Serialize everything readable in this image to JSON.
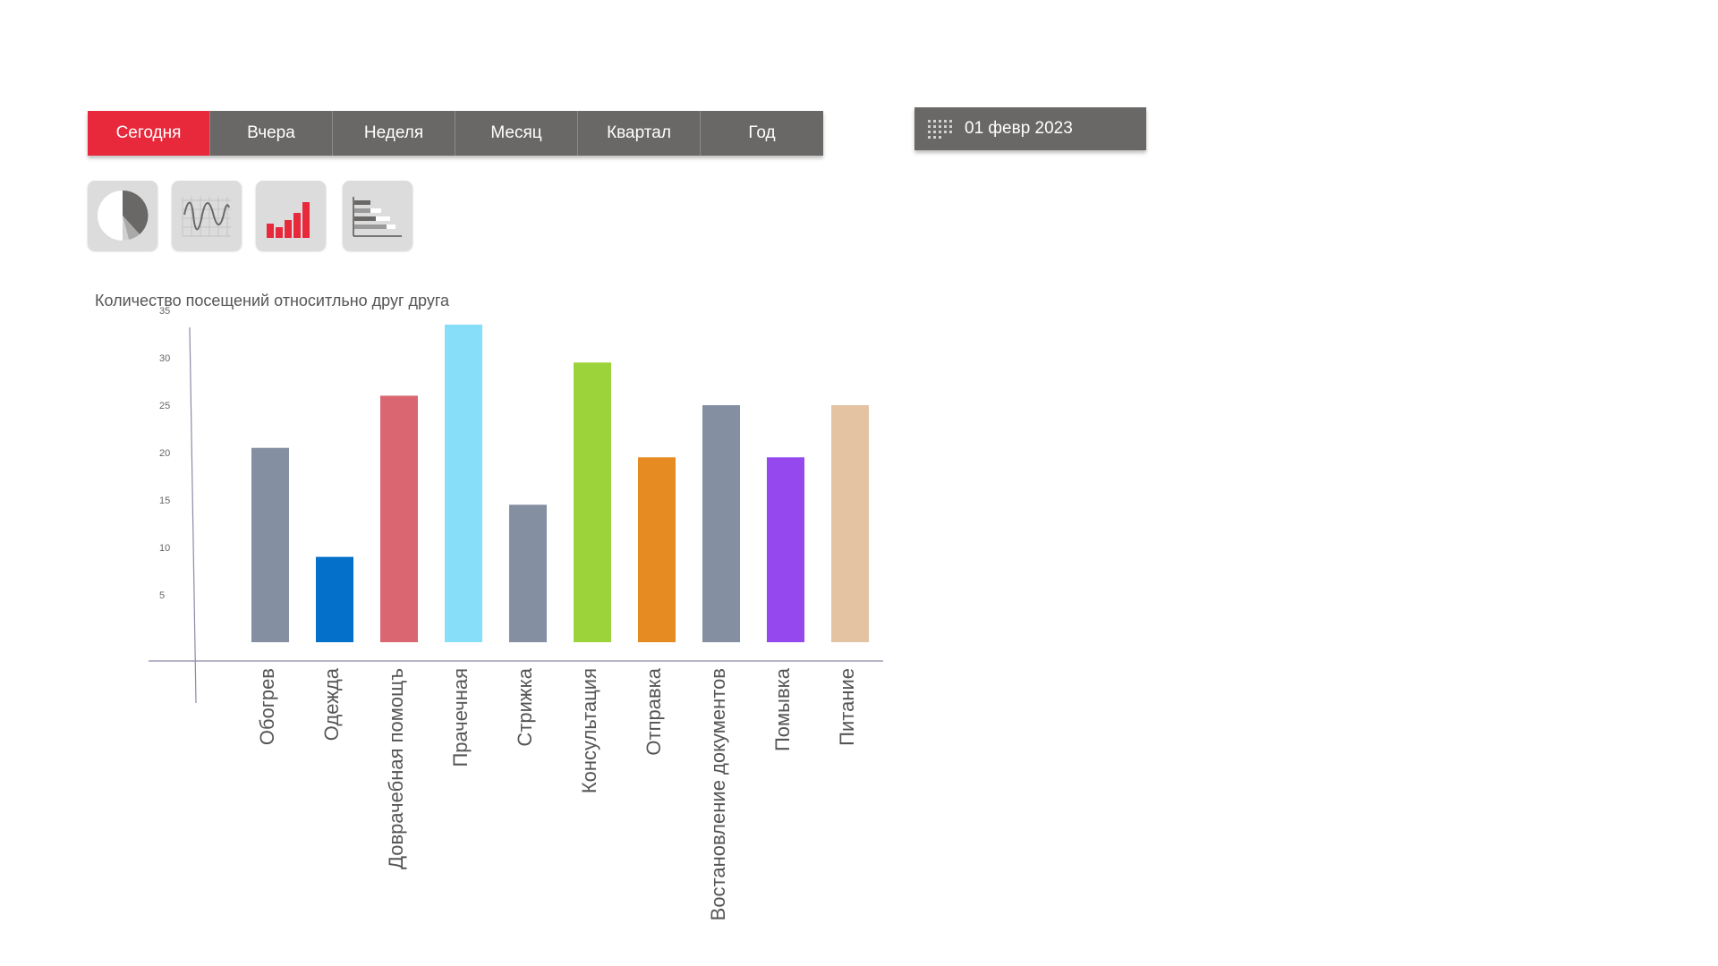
{
  "tabs": [
    {
      "label": "Сегодня",
      "active": true
    },
    {
      "label": "Вчера",
      "active": false
    },
    {
      "label": "Неделя",
      "active": false
    },
    {
      "label": "Месяц",
      "active": false
    },
    {
      "label": "Квартал",
      "active": false
    },
    {
      "label": "Год",
      "active": false
    }
  ],
  "date_picker": {
    "value": "01 февр 2023",
    "icon": "calendar-icon"
  },
  "chart_types": [
    {
      "icon": "pie-chart-icon"
    },
    {
      "icon": "line-chart-icon"
    },
    {
      "icon": "bar-chart-icon"
    },
    {
      "icon": "horizontal-bar-chart-icon"
    }
  ],
  "colors": {
    "accent": "#e8293b",
    "tab_bg": "#6a6866"
  },
  "chart_data": {
    "type": "bar",
    "title": "Количество посещений относитльно друг друга",
    "categories": [
      "Обогрев",
      "Одежда",
      "Доврачебная помощъ",
      "Прачечная",
      "Стрижка",
      "Консультация",
      "Отправка",
      "Востановление документов",
      "Помывка",
      "Питание"
    ],
    "values": [
      20.5,
      9,
      26,
      33.5,
      14.5,
      29.5,
      19.5,
      25,
      19.5,
      25
    ],
    "bar_colors": [
      "#848fa1",
      "#0470c9",
      "#d96671",
      "#87def9",
      "#848fa1",
      "#9dd33a",
      "#e68b22",
      "#848fa1",
      "#9448ee",
      "#e4c3a3"
    ],
    "y_ticks": [
      "5",
      "10",
      "15",
      "20",
      "25",
      "30",
      "35"
    ],
    "ylim": [
      0,
      35
    ],
    "grid": false,
    "legend": "none"
  }
}
